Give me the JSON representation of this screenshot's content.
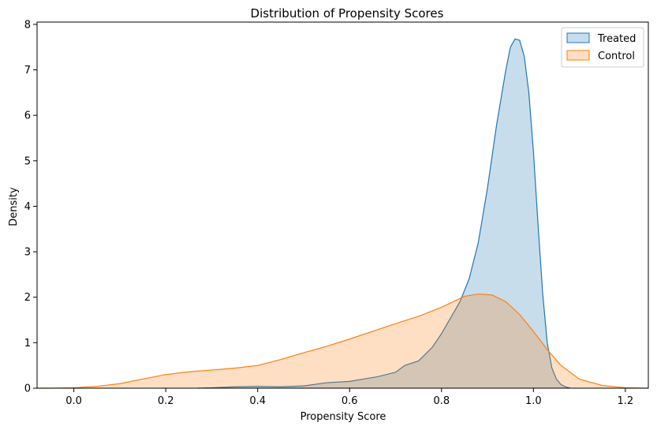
{
  "chart_data": {
    "type": "area",
    "title": "Distribution of Propensity Scores",
    "xlabel": "Propensity Score",
    "ylabel": "Density",
    "xlim": [
      -0.08,
      1.25
    ],
    "ylim": [
      0,
      8.05
    ],
    "xticks": [
      0.0,
      0.2,
      0.4,
      0.6,
      0.8,
      1.0,
      1.2
    ],
    "xtick_labels": [
      "0.0",
      "0.2",
      "0.4",
      "0.6",
      "0.8",
      "1.0",
      "1.2"
    ],
    "yticks": [
      0,
      1,
      2,
      3,
      4,
      5,
      6,
      7,
      8
    ],
    "ytick_labels": [
      "0",
      "1",
      "2",
      "3",
      "4",
      "5",
      "6",
      "7",
      "8"
    ],
    "grid": false,
    "legend_position": "top-right",
    "series": [
      {
        "name": "Treated",
        "color": "#1f77b4",
        "fill": "#1f77b4",
        "fill_opacity": 0.25,
        "x": [
          0.27,
          0.3,
          0.35,
          0.4,
          0.45,
          0.5,
          0.55,
          0.6,
          0.63,
          0.66,
          0.7,
          0.72,
          0.75,
          0.78,
          0.8,
          0.82,
          0.84,
          0.86,
          0.88,
          0.9,
          0.92,
          0.94,
          0.95,
          0.96,
          0.97,
          0.98,
          0.99,
          1.0,
          1.01,
          1.02,
          1.03,
          1.04,
          1.05,
          1.06,
          1.07,
          1.08
        ],
        "y": [
          0.0,
          0.01,
          0.03,
          0.04,
          0.03,
          0.05,
          0.12,
          0.15,
          0.2,
          0.25,
          0.35,
          0.5,
          0.6,
          0.9,
          1.2,
          1.55,
          1.9,
          2.4,
          3.2,
          4.4,
          5.8,
          7.0,
          7.5,
          7.68,
          7.65,
          7.3,
          6.5,
          5.2,
          3.6,
          2.1,
          1.0,
          0.45,
          0.2,
          0.08,
          0.03,
          0.0
        ]
      },
      {
        "name": "Control",
        "color": "#ff7f0e",
        "fill": "#ff7f0e",
        "fill_opacity": 0.25,
        "x": [
          -0.08,
          -0.05,
          0.0,
          0.05,
          0.1,
          0.15,
          0.2,
          0.25,
          0.3,
          0.35,
          0.4,
          0.45,
          0.5,
          0.55,
          0.6,
          0.65,
          0.7,
          0.75,
          0.8,
          0.85,
          0.88,
          0.91,
          0.94,
          0.97,
          1.0,
          1.03,
          1.06,
          1.1,
          1.15,
          1.2,
          1.25
        ],
        "y": [
          0.0,
          0.0,
          0.01,
          0.04,
          0.1,
          0.2,
          0.3,
          0.36,
          0.4,
          0.44,
          0.5,
          0.63,
          0.78,
          0.92,
          1.08,
          1.25,
          1.42,
          1.58,
          1.78,
          2.02,
          2.07,
          2.05,
          1.9,
          1.62,
          1.25,
          0.85,
          0.5,
          0.2,
          0.06,
          0.01,
          0.0
        ]
      }
    ]
  }
}
